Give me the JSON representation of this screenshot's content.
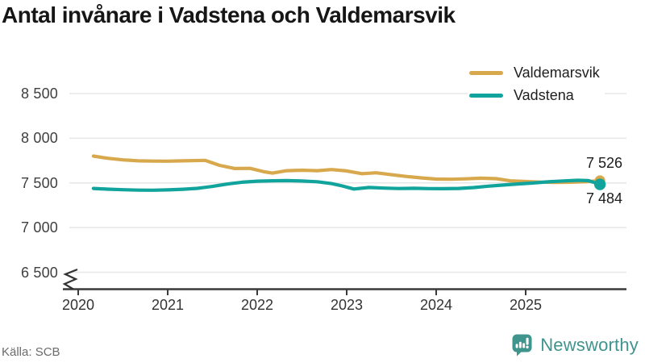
{
  "header": {
    "title": "Antal invånare i Vadstena och Valdemarsvik"
  },
  "legend": {
    "position": "top-right",
    "items": [
      {
        "label": "Valdemarsvik",
        "color": "#d8a84d"
      },
      {
        "label": "Vadstena",
        "color": "#11a49c"
      }
    ]
  },
  "footer": {
    "source": "Källa: SCB",
    "brand_name": "Newsworthy",
    "brand_color": "#40948e"
  },
  "colors": {
    "valdemarsvik": "#d8a84d",
    "vadstena": "#11a49c",
    "gridline": "#e7e7e7",
    "axis": "#3a3a3a",
    "title_text": "#161616",
    "tick_text": "#3d3d3d"
  },
  "chart_data": {
    "type": "line",
    "title": "Antal invånare i Vadstena och Valdemarsvik",
    "source": "Källa: SCB",
    "grid": "horizontal",
    "legend_position": "top-right",
    "x_axis": {
      "ticks": [
        2020,
        2021,
        2022,
        2023,
        2024,
        2025
      ],
      "tick_labels": [
        "2020",
        "2021",
        "2022",
        "2023",
        "2024",
        "2025"
      ]
    },
    "y_axis": {
      "ticks": [
        6500,
        7000,
        7500,
        8000,
        8500
      ],
      "tick_labels": [
        "6 500",
        "7 000",
        "7 500",
        "8 000",
        "8 500"
      ],
      "broken_axis": true,
      "ylim": [
        6500,
        8500
      ]
    },
    "series": [
      {
        "name": "Valdemarsvik",
        "color": "#d8a84d",
        "end_value": 7526,
        "end_label": "7 526",
        "points": [
          [
            2020.17,
            7800
          ],
          [
            2020.33,
            7776
          ],
          [
            2020.5,
            7758
          ],
          [
            2020.67,
            7747
          ],
          [
            2020.83,
            7744
          ],
          [
            2021.0,
            7743
          ],
          [
            2021.17,
            7747
          ],
          [
            2021.42,
            7752
          ],
          [
            2021.58,
            7696
          ],
          [
            2021.75,
            7661
          ],
          [
            2021.92,
            7663
          ],
          [
            2022.08,
            7624
          ],
          [
            2022.17,
            7610
          ],
          [
            2022.33,
            7637
          ],
          [
            2022.5,
            7642
          ],
          [
            2022.67,
            7637
          ],
          [
            2022.83,
            7649
          ],
          [
            2023.0,
            7634
          ],
          [
            2023.17,
            7603
          ],
          [
            2023.33,
            7613
          ],
          [
            2023.5,
            7592
          ],
          [
            2023.67,
            7572
          ],
          [
            2023.83,
            7556
          ],
          [
            2024.0,
            7543
          ],
          [
            2024.17,
            7541
          ],
          [
            2024.33,
            7546
          ],
          [
            2024.5,
            7553
          ],
          [
            2024.67,
            7547
          ],
          [
            2024.83,
            7523
          ],
          [
            2025.0,
            7516
          ],
          [
            2025.17,
            7509
          ],
          [
            2025.33,
            7505
          ],
          [
            2025.5,
            7508
          ],
          [
            2025.67,
            7513
          ],
          [
            2025.83,
            7526
          ]
        ]
      },
      {
        "name": "Vadstena",
        "color": "#11a49c",
        "end_value": 7484,
        "end_label": "7 484",
        "points": [
          [
            2020.17,
            7438
          ],
          [
            2020.33,
            7430
          ],
          [
            2020.5,
            7424
          ],
          [
            2020.67,
            7419
          ],
          [
            2020.83,
            7418
          ],
          [
            2021.0,
            7422
          ],
          [
            2021.17,
            7429
          ],
          [
            2021.33,
            7439
          ],
          [
            2021.5,
            7461
          ],
          [
            2021.67,
            7488
          ],
          [
            2021.83,
            7508
          ],
          [
            2022.0,
            7519
          ],
          [
            2022.17,
            7524
          ],
          [
            2022.33,
            7526
          ],
          [
            2022.5,
            7521
          ],
          [
            2022.67,
            7513
          ],
          [
            2022.83,
            7492
          ],
          [
            2022.95,
            7466
          ],
          [
            2023.08,
            7432
          ],
          [
            2023.25,
            7449
          ],
          [
            2023.42,
            7442
          ],
          [
            2023.58,
            7437
          ],
          [
            2023.75,
            7440
          ],
          [
            2023.92,
            7436
          ],
          [
            2024.08,
            7435
          ],
          [
            2024.25,
            7438
          ],
          [
            2024.42,
            7448
          ],
          [
            2024.58,
            7463
          ],
          [
            2024.75,
            7476
          ],
          [
            2024.92,
            7489
          ],
          [
            2025.08,
            7499
          ],
          [
            2025.25,
            7512
          ],
          [
            2025.42,
            7522
          ],
          [
            2025.58,
            7529
          ],
          [
            2025.7,
            7526
          ],
          [
            2025.83,
            7484
          ]
        ]
      }
    ]
  }
}
